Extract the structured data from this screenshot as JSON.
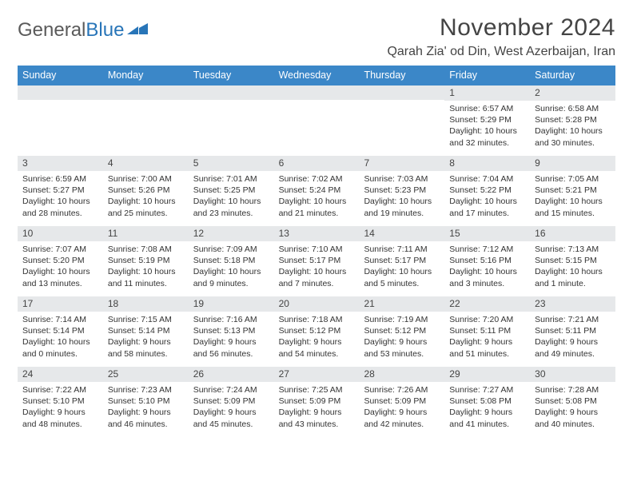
{
  "brand": {
    "part1": "General",
    "part2": "Blue"
  },
  "title": "November 2024",
  "location": "Qarah Zia' od Din, West Azerbaijan, Iran",
  "colors": {
    "header_bg": "#3b87c8",
    "daynum_bg": "#e6e8ea",
    "text": "#333333",
    "title": "#444444"
  },
  "weekdays": [
    "Sunday",
    "Monday",
    "Tuesday",
    "Wednesday",
    "Thursday",
    "Friday",
    "Saturday"
  ],
  "weeks": [
    [
      {
        "n": "",
        "sun": "",
        "set": "",
        "day": ""
      },
      {
        "n": "",
        "sun": "",
        "set": "",
        "day": ""
      },
      {
        "n": "",
        "sun": "",
        "set": "",
        "day": ""
      },
      {
        "n": "",
        "sun": "",
        "set": "",
        "day": ""
      },
      {
        "n": "",
        "sun": "",
        "set": "",
        "day": ""
      },
      {
        "n": "1",
        "sun": "Sunrise: 6:57 AM",
        "set": "Sunset: 5:29 PM",
        "day": "Daylight: 10 hours and 32 minutes."
      },
      {
        "n": "2",
        "sun": "Sunrise: 6:58 AM",
        "set": "Sunset: 5:28 PM",
        "day": "Daylight: 10 hours and 30 minutes."
      }
    ],
    [
      {
        "n": "3",
        "sun": "Sunrise: 6:59 AM",
        "set": "Sunset: 5:27 PM",
        "day": "Daylight: 10 hours and 28 minutes."
      },
      {
        "n": "4",
        "sun": "Sunrise: 7:00 AM",
        "set": "Sunset: 5:26 PM",
        "day": "Daylight: 10 hours and 25 minutes."
      },
      {
        "n": "5",
        "sun": "Sunrise: 7:01 AM",
        "set": "Sunset: 5:25 PM",
        "day": "Daylight: 10 hours and 23 minutes."
      },
      {
        "n": "6",
        "sun": "Sunrise: 7:02 AM",
        "set": "Sunset: 5:24 PM",
        "day": "Daylight: 10 hours and 21 minutes."
      },
      {
        "n": "7",
        "sun": "Sunrise: 7:03 AM",
        "set": "Sunset: 5:23 PM",
        "day": "Daylight: 10 hours and 19 minutes."
      },
      {
        "n": "8",
        "sun": "Sunrise: 7:04 AM",
        "set": "Sunset: 5:22 PM",
        "day": "Daylight: 10 hours and 17 minutes."
      },
      {
        "n": "9",
        "sun": "Sunrise: 7:05 AM",
        "set": "Sunset: 5:21 PM",
        "day": "Daylight: 10 hours and 15 minutes."
      }
    ],
    [
      {
        "n": "10",
        "sun": "Sunrise: 7:07 AM",
        "set": "Sunset: 5:20 PM",
        "day": "Daylight: 10 hours and 13 minutes."
      },
      {
        "n": "11",
        "sun": "Sunrise: 7:08 AM",
        "set": "Sunset: 5:19 PM",
        "day": "Daylight: 10 hours and 11 minutes."
      },
      {
        "n": "12",
        "sun": "Sunrise: 7:09 AM",
        "set": "Sunset: 5:18 PM",
        "day": "Daylight: 10 hours and 9 minutes."
      },
      {
        "n": "13",
        "sun": "Sunrise: 7:10 AM",
        "set": "Sunset: 5:17 PM",
        "day": "Daylight: 10 hours and 7 minutes."
      },
      {
        "n": "14",
        "sun": "Sunrise: 7:11 AM",
        "set": "Sunset: 5:17 PM",
        "day": "Daylight: 10 hours and 5 minutes."
      },
      {
        "n": "15",
        "sun": "Sunrise: 7:12 AM",
        "set": "Sunset: 5:16 PM",
        "day": "Daylight: 10 hours and 3 minutes."
      },
      {
        "n": "16",
        "sun": "Sunrise: 7:13 AM",
        "set": "Sunset: 5:15 PM",
        "day": "Daylight: 10 hours and 1 minute."
      }
    ],
    [
      {
        "n": "17",
        "sun": "Sunrise: 7:14 AM",
        "set": "Sunset: 5:14 PM",
        "day": "Daylight: 10 hours and 0 minutes."
      },
      {
        "n": "18",
        "sun": "Sunrise: 7:15 AM",
        "set": "Sunset: 5:14 PM",
        "day": "Daylight: 9 hours and 58 minutes."
      },
      {
        "n": "19",
        "sun": "Sunrise: 7:16 AM",
        "set": "Sunset: 5:13 PM",
        "day": "Daylight: 9 hours and 56 minutes."
      },
      {
        "n": "20",
        "sun": "Sunrise: 7:18 AM",
        "set": "Sunset: 5:12 PM",
        "day": "Daylight: 9 hours and 54 minutes."
      },
      {
        "n": "21",
        "sun": "Sunrise: 7:19 AM",
        "set": "Sunset: 5:12 PM",
        "day": "Daylight: 9 hours and 53 minutes."
      },
      {
        "n": "22",
        "sun": "Sunrise: 7:20 AM",
        "set": "Sunset: 5:11 PM",
        "day": "Daylight: 9 hours and 51 minutes."
      },
      {
        "n": "23",
        "sun": "Sunrise: 7:21 AM",
        "set": "Sunset: 5:11 PM",
        "day": "Daylight: 9 hours and 49 minutes."
      }
    ],
    [
      {
        "n": "24",
        "sun": "Sunrise: 7:22 AM",
        "set": "Sunset: 5:10 PM",
        "day": "Daylight: 9 hours and 48 minutes."
      },
      {
        "n": "25",
        "sun": "Sunrise: 7:23 AM",
        "set": "Sunset: 5:10 PM",
        "day": "Daylight: 9 hours and 46 minutes."
      },
      {
        "n": "26",
        "sun": "Sunrise: 7:24 AM",
        "set": "Sunset: 5:09 PM",
        "day": "Daylight: 9 hours and 45 minutes."
      },
      {
        "n": "27",
        "sun": "Sunrise: 7:25 AM",
        "set": "Sunset: 5:09 PM",
        "day": "Daylight: 9 hours and 43 minutes."
      },
      {
        "n": "28",
        "sun": "Sunrise: 7:26 AM",
        "set": "Sunset: 5:09 PM",
        "day": "Daylight: 9 hours and 42 minutes."
      },
      {
        "n": "29",
        "sun": "Sunrise: 7:27 AM",
        "set": "Sunset: 5:08 PM",
        "day": "Daylight: 9 hours and 41 minutes."
      },
      {
        "n": "30",
        "sun": "Sunrise: 7:28 AM",
        "set": "Sunset: 5:08 PM",
        "day": "Daylight: 9 hours and 40 minutes."
      }
    ]
  ]
}
